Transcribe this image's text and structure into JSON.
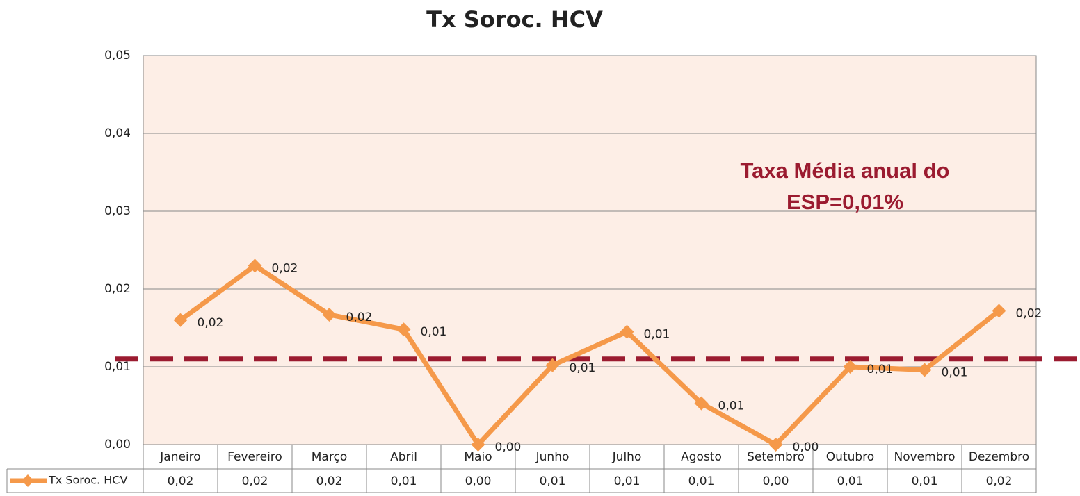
{
  "chart_data": {
    "type": "line",
    "title": "Tx Soroc. HCV",
    "categories": [
      "Janeiro",
      "Fevereiro",
      "Março",
      "Abril",
      "Maio",
      "Junho",
      "Julho",
      "Agosto",
      "Setembro",
      "Outubro",
      "Novembro",
      "Dezembro"
    ],
    "series": [
      {
        "name": "Tx Soroc. HCV",
        "color": "#f5994a",
        "values": [
          0.016,
          0.023,
          0.0167,
          0.0148,
          0.0,
          0.0102,
          0.0145,
          0.0053,
          0.0,
          0.01,
          0.0096,
          0.0172
        ],
        "value_labels": [
          "0,02",
          "0,02",
          "0,02",
          "0,01",
          "0,00",
          "0,01",
          "0,01",
          "0,01",
          "0,00",
          "0,01",
          "0,01",
          "0,02"
        ]
      }
    ],
    "ylim": [
      0,
      0.05
    ],
    "yticks": [
      {
        "value": 0,
        "label": "0,00"
      },
      {
        "value": 0.01,
        "label": "0,01"
      },
      {
        "value": 0.02,
        "label": "0,02"
      },
      {
        "value": 0.03,
        "label": "0,03"
      },
      {
        "value": 0.04,
        "label": "0,04"
      },
      {
        "value": 0.05,
        "label": "0,05"
      }
    ],
    "grid": true,
    "reference_line": {
      "value": 0.011,
      "color": "#9b1b30",
      "label": [
        "Taxa Média anual do",
        "ESP=0,01%"
      ]
    }
  }
}
